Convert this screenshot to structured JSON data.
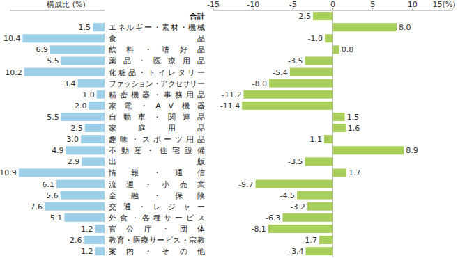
{
  "chart_data": [
    {
      "type": "bar",
      "orientation": "horizontal",
      "title": "構成比 (%)",
      "categories": [
        "合計",
        "エネルギー・素材・機械",
        "食品",
        "飲料・嗜好品",
        "薬品・医療用品",
        "化粧品・トイレタリー",
        "ファッション・アクセサリー",
        "精密機器・事務用品",
        "家電・AV機器",
        "自動車・関連品",
        "家庭用品",
        "趣味・スポーツ用品",
        "不動産・住宅設備",
        "出版",
        "情報・通信",
        "流通・小売業",
        "金融・保険",
        "交通・レジャー",
        "外食・各種サービス",
        "官公庁・団体",
        "教育・医療サービス・宗教",
        "案内・その他"
      ],
      "values": [
        null,
        1.5,
        10.4,
        6.9,
        5.5,
        10.2,
        3.4,
        1.0,
        2.0,
        5.5,
        2.5,
        3.0,
        4.9,
        2.9,
        10.9,
        6.1,
        5.6,
        7.6,
        5.1,
        1.2,
        2.6,
        1.2
      ],
      "value_labels": [
        null,
        "1.5",
        "10.4",
        "6.9",
        "5.5",
        "10.2",
        "3.4",
        "1.0",
        "2.0",
        "5.5",
        "2.5",
        "3.0",
        "4.9",
        "2.9",
        "10.9",
        "6.1",
        "5.6",
        "7.6",
        "5.1",
        "1.2",
        "2.6",
        "1.2"
      ],
      "xlim": [
        0,
        12
      ],
      "color": "#9dcfe9",
      "data_labels": true,
      "tick_labels": false,
      "grid": false
    },
    {
      "type": "bar",
      "orientation": "horizontal",
      "values": [
        -2.5,
        8.0,
        -1.0,
        0.8,
        -3.5,
        -5.4,
        -8.0,
        -11.2,
        -11.4,
        1.5,
        1.6,
        -1.1,
        8.9,
        -3.5,
        1.7,
        -9.7,
        -4.5,
        -3.2,
        -6.3,
        -8.1,
        -1.7,
        -3.4
      ],
      "value_labels": [
        "-2.5",
        "8.0",
        "-1.0",
        "0.8",
        "-3.5",
        "-5.4",
        "-8.0",
        "-11.2",
        "-11.4",
        "1.5",
        "1.6",
        "-1.1",
        "8.9",
        "-3.5",
        "1.7",
        "-9.7",
        "-4.5",
        "-3.2",
        "-6.3",
        "-8.1",
        "-1.7",
        "-3.4"
      ],
      "xlim": [
        -15,
        15
      ],
      "xticks": [
        -15,
        -10,
        -5,
        0,
        5,
        10,
        {
          "value": 15,
          "label": "15(%)"
        }
      ],
      "color": "#a8cf5b",
      "data_labels": true,
      "grid": false
    }
  ]
}
